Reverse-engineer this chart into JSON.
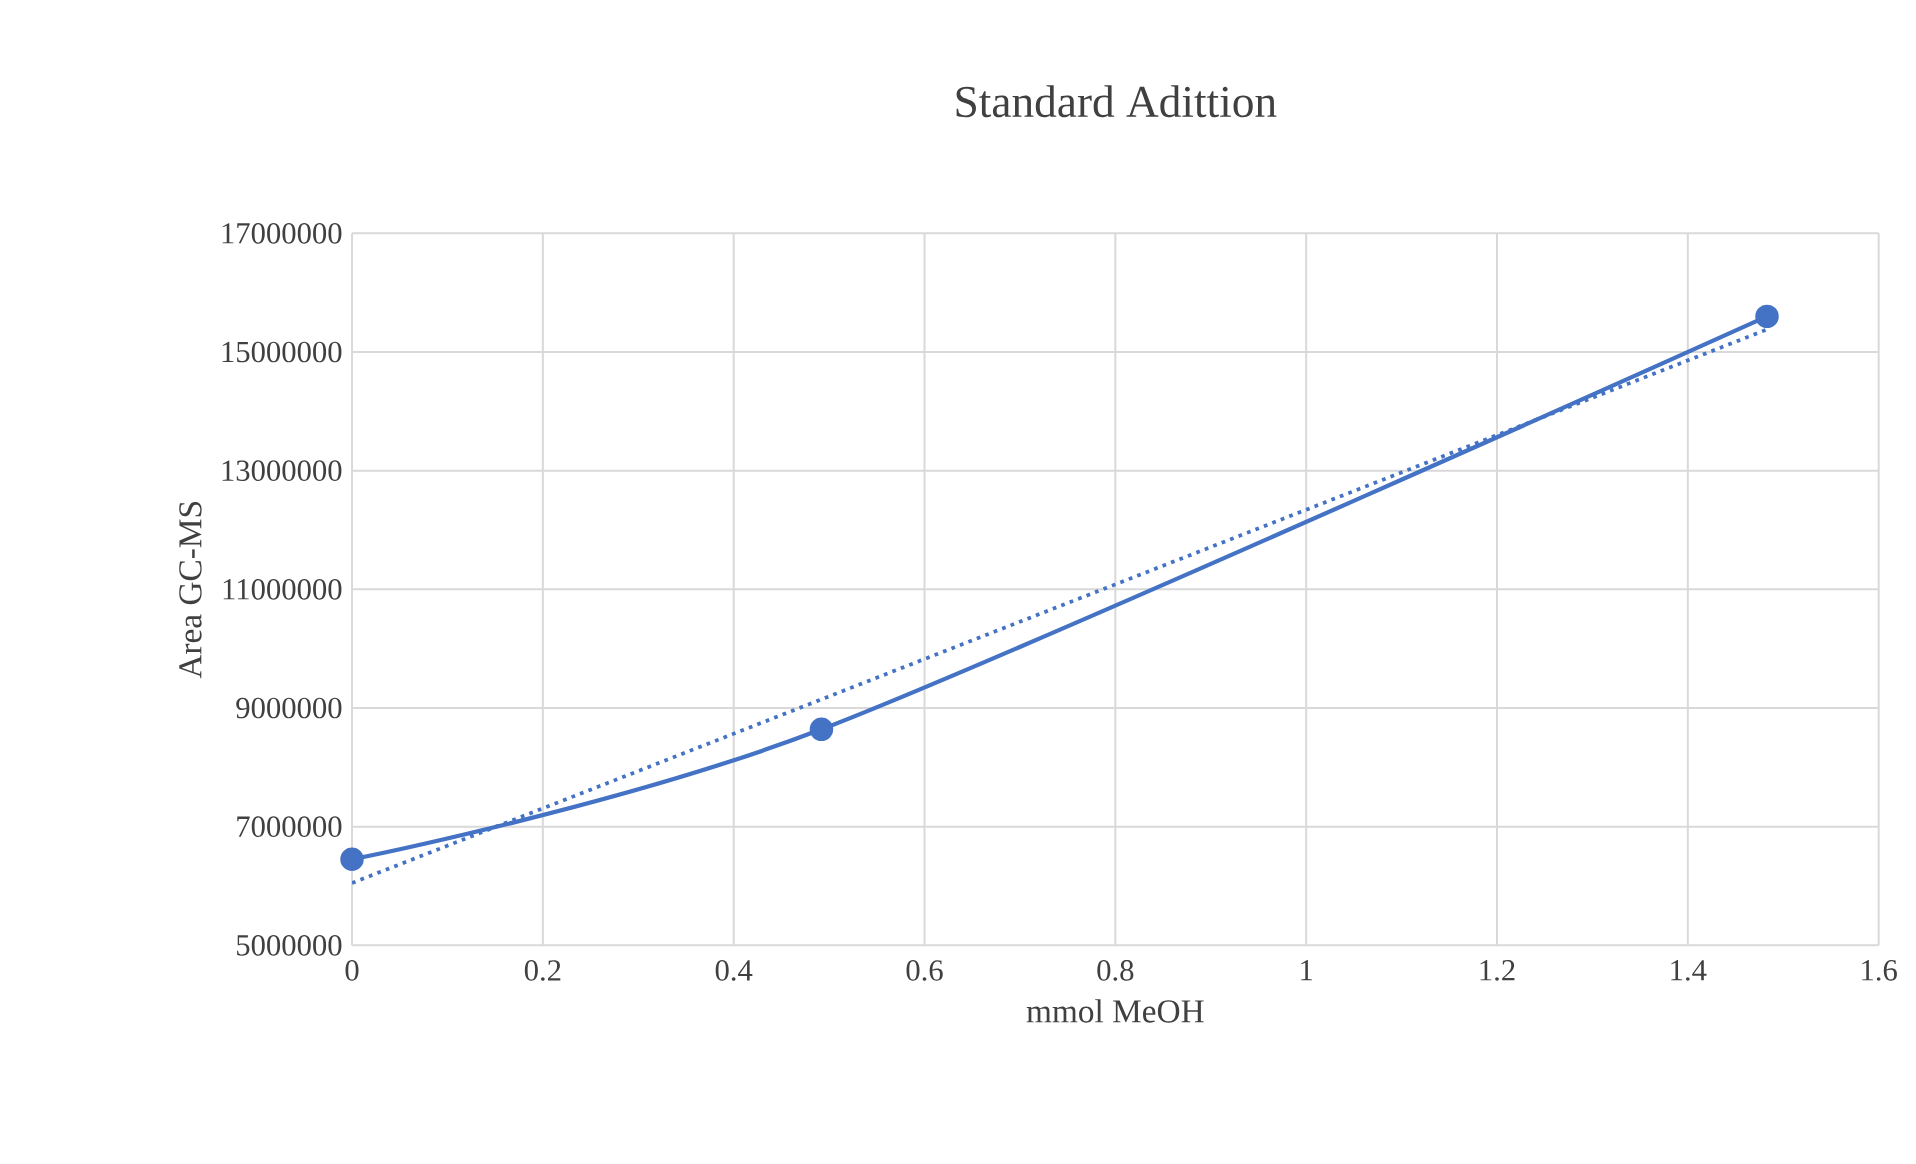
{
  "chart_data": {
    "type": "line",
    "title": "Standard Adittion",
    "xlabel": "mmol MeOH",
    "ylabel": "Area GC-MS",
    "series": [
      {
        "x": [
          0,
          0.492,
          1.483
        ],
        "values": [
          6450000,
          8640000,
          15600000
        ],
        "color": "#4472c4",
        "marker": "circle",
        "line_style": "solid"
      },
      {
        "x": [
          0,
          1.483
        ],
        "values": [
          6050000,
          15380000
        ],
        "color": "#4472c4",
        "marker": "none",
        "line_style": "dotted"
      }
    ],
    "xlim": [
      0,
      1.6
    ],
    "xticks": [
      0,
      0.2,
      0.4,
      0.6,
      0.8,
      1,
      1.2,
      1.4,
      1.6
    ],
    "ylim": [
      5000000,
      17000000
    ],
    "yticks": [
      5000000,
      7000000,
      9000000,
      11000000,
      13000000,
      15000000,
      17000000
    ],
    "grid": true
  }
}
